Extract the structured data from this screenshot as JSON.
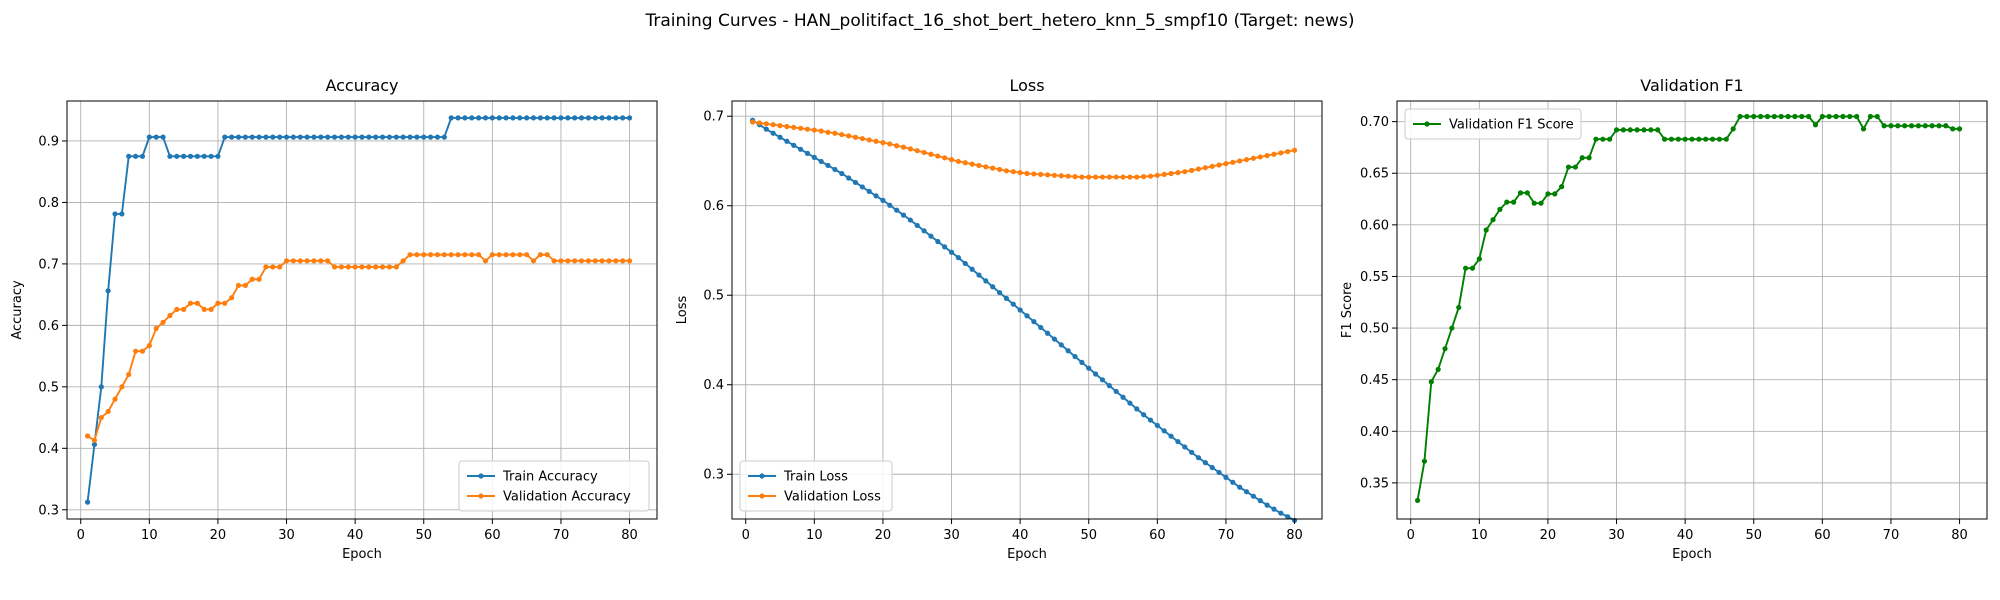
{
  "suptitle": "Training Curves - HAN_politifact_16_shot_bert_hetero_knn_5_smpf10 (Target: news)",
  "chart_data": [
    {
      "type": "line",
      "title": "Accuracy",
      "xlabel": "Epoch",
      "ylabel": "Accuracy",
      "xlim": [
        -2,
        84
      ],
      "ylim": [
        0.285,
        0.965
      ],
      "xticks": [
        0,
        10,
        20,
        30,
        40,
        50,
        60,
        70,
        80
      ],
      "yticks": [
        0.3,
        0.4,
        0.5,
        0.6,
        0.7,
        0.8,
        0.9
      ],
      "ytick_decimals": 1,
      "grid": true,
      "legend": "lower-right",
      "x": [
        1,
        2,
        3,
        4,
        5,
        6,
        7,
        8,
        9,
        10,
        11,
        12,
        13,
        14,
        15,
        16,
        17,
        18,
        19,
        20,
        21,
        22,
        23,
        24,
        25,
        26,
        27,
        28,
        29,
        30,
        31,
        32,
        33,
        34,
        35,
        36,
        37,
        38,
        39,
        40,
        41,
        42,
        43,
        44,
        45,
        46,
        47,
        48,
        49,
        50,
        51,
        52,
        53,
        54,
        55,
        56,
        57,
        58,
        59,
        60,
        61,
        62,
        63,
        64,
        65,
        66,
        67,
        68,
        69,
        70,
        71,
        72,
        73,
        74,
        75,
        76,
        77,
        78,
        79,
        80
      ],
      "series": [
        {
          "name": "Train Accuracy",
          "color": "#1f77b4",
          "values": [
            0.3125,
            0.40625,
            0.5,
            0.65625,
            0.78125,
            0.78125,
            0.875,
            0.875,
            0.875,
            0.90625,
            0.90625,
            0.90625,
            0.875,
            0.875,
            0.875,
            0.875,
            0.875,
            0.875,
            0.875,
            0.875,
            0.90625,
            0.90625,
            0.90625,
            0.90625,
            0.90625,
            0.90625,
            0.90625,
            0.90625,
            0.90625,
            0.90625,
            0.90625,
            0.90625,
            0.90625,
            0.90625,
            0.90625,
            0.90625,
            0.90625,
            0.90625,
            0.90625,
            0.90625,
            0.90625,
            0.90625,
            0.90625,
            0.90625,
            0.90625,
            0.90625,
            0.90625,
            0.90625,
            0.90625,
            0.90625,
            0.90625,
            0.90625,
            0.90625,
            0.9375,
            0.9375,
            0.9375,
            0.9375,
            0.9375,
            0.9375,
            0.9375,
            0.9375,
            0.9375,
            0.9375,
            0.9375,
            0.9375,
            0.9375,
            0.9375,
            0.9375,
            0.9375,
            0.9375,
            0.9375,
            0.9375,
            0.9375,
            0.9375,
            0.9375,
            0.9375,
            0.9375,
            0.9375,
            0.9375,
            0.9375
          ]
        },
        {
          "name": "Validation Accuracy",
          "color": "#ff7f0e",
          "values": [
            0.42,
            0.413,
            0.45,
            0.46,
            0.48,
            0.5,
            0.52,
            0.558,
            0.558,
            0.567,
            0.595,
            0.605,
            0.616,
            0.626,
            0.626,
            0.636,
            0.636,
            0.626,
            0.626,
            0.636,
            0.636,
            0.645,
            0.665,
            0.665,
            0.675,
            0.675,
            0.695,
            0.695,
            0.695,
            0.705,
            0.705,
            0.705,
            0.705,
            0.705,
            0.705,
            0.705,
            0.695,
            0.695,
            0.695,
            0.695,
            0.695,
            0.695,
            0.695,
            0.695,
            0.695,
            0.695,
            0.705,
            0.715,
            0.715,
            0.715,
            0.715,
            0.715,
            0.715,
            0.715,
            0.715,
            0.715,
            0.715,
            0.715,
            0.705,
            0.715,
            0.715,
            0.715,
            0.715,
            0.715,
            0.715,
            0.705,
            0.715,
            0.715,
            0.705,
            0.705,
            0.705,
            0.705,
            0.705,
            0.705,
            0.705,
            0.705,
            0.705,
            0.705,
            0.705,
            0.705
          ]
        }
      ]
    },
    {
      "type": "line",
      "title": "Loss",
      "xlabel": "Epoch",
      "ylabel": "Loss",
      "xlim": [
        -2,
        84
      ],
      "ylim": [
        0.25,
        0.717
      ],
      "xticks": [
        0,
        10,
        20,
        30,
        40,
        50,
        60,
        70,
        80
      ],
      "yticks": [
        0.3,
        0.4,
        0.5,
        0.6,
        0.7
      ],
      "ytick_decimals": 1,
      "grid": true,
      "legend": "lower-left",
      "x": [
        1,
        2,
        3,
        4,
        5,
        6,
        7,
        8,
        9,
        10,
        11,
        12,
        13,
        14,
        15,
        16,
        17,
        18,
        19,
        20,
        21,
        22,
        23,
        24,
        25,
        26,
        27,
        28,
        29,
        30,
        31,
        32,
        33,
        34,
        35,
        36,
        37,
        38,
        39,
        40,
        41,
        42,
        43,
        44,
        45,
        46,
        47,
        48,
        49,
        50,
        51,
        52,
        53,
        54,
        55,
        56,
        57,
        58,
        59,
        60,
        61,
        62,
        63,
        64,
        65,
        66,
        67,
        68,
        69,
        70,
        71,
        72,
        73,
        74,
        75,
        76,
        77,
        78,
        79,
        80
      ],
      "series": [
        {
          "name": "Train Loss",
          "color": "#1f77b4",
          "values": [
            0.6955,
            0.6905,
            0.6855,
            0.681,
            0.6765,
            0.672,
            0.6675,
            0.663,
            0.6585,
            0.654,
            0.6495,
            0.645,
            0.6405,
            0.636,
            0.631,
            0.626,
            0.621,
            0.616,
            0.611,
            0.606,
            0.6005,
            0.595,
            0.5895,
            0.584,
            0.578,
            0.572,
            0.566,
            0.56,
            0.554,
            0.548,
            0.542,
            0.5355,
            0.529,
            0.5225,
            0.516,
            0.5095,
            0.503,
            0.4965,
            0.49,
            0.4835,
            0.477,
            0.4705,
            0.464,
            0.4575,
            0.451,
            0.4445,
            0.438,
            0.4315,
            0.425,
            0.4185,
            0.412,
            0.4055,
            0.399,
            0.3925,
            0.386,
            0.3795,
            0.373,
            0.3665,
            0.3605,
            0.3545,
            0.3485,
            0.3425,
            0.3365,
            0.3305,
            0.3245,
            0.3185,
            0.313,
            0.3075,
            0.302,
            0.2965,
            0.291,
            0.2855,
            0.2805,
            0.2755,
            0.2705,
            0.2655,
            0.261,
            0.2565,
            0.2525,
            0.2485
          ]
        },
        {
          "name": "Validation Loss",
          "color": "#ff7f0e",
          "values": [
            0.6935,
            0.6925,
            0.6915,
            0.6905,
            0.6895,
            0.6885,
            0.6875,
            0.6865,
            0.6855,
            0.6845,
            0.6835,
            0.682,
            0.681,
            0.6795,
            0.678,
            0.6765,
            0.675,
            0.6735,
            0.672,
            0.6705,
            0.669,
            0.667,
            0.6655,
            0.6635,
            0.6615,
            0.6595,
            0.6575,
            0.6555,
            0.6535,
            0.6515,
            0.6495,
            0.648,
            0.6465,
            0.645,
            0.6435,
            0.642,
            0.6405,
            0.639,
            0.638,
            0.637,
            0.636,
            0.6355,
            0.635,
            0.6345,
            0.634,
            0.6335,
            0.633,
            0.6325,
            0.632,
            0.632,
            0.632,
            0.632,
            0.632,
            0.632,
            0.632,
            0.632,
            0.632,
            0.6325,
            0.633,
            0.634,
            0.635,
            0.636,
            0.637,
            0.638,
            0.6395,
            0.641,
            0.6425,
            0.644,
            0.6455,
            0.647,
            0.6485,
            0.65,
            0.6515,
            0.653,
            0.6545,
            0.656,
            0.6575,
            0.659,
            0.6605,
            0.662
          ]
        }
      ]
    },
    {
      "type": "line",
      "title": "Validation F1",
      "xlabel": "Epoch",
      "ylabel": "F1 Score",
      "xlim": [
        -2,
        84
      ],
      "ylim": [
        0.315,
        0.72
      ],
      "xticks": [
        0,
        10,
        20,
        30,
        40,
        50,
        60,
        70,
        80
      ],
      "yticks": [
        0.35,
        0.4,
        0.45,
        0.5,
        0.55,
        0.6,
        0.65,
        0.7
      ],
      "ytick_decimals": 2,
      "grid": true,
      "legend": "upper-left",
      "x": [
        1,
        2,
        3,
        4,
        5,
        6,
        7,
        8,
        9,
        10,
        11,
        12,
        13,
        14,
        15,
        16,
        17,
        18,
        19,
        20,
        21,
        22,
        23,
        24,
        25,
        26,
        27,
        28,
        29,
        30,
        31,
        32,
        33,
        34,
        35,
        36,
        37,
        38,
        39,
        40,
        41,
        42,
        43,
        44,
        45,
        46,
        47,
        48,
        49,
        50,
        51,
        52,
        53,
        54,
        55,
        56,
        57,
        58,
        59,
        60,
        61,
        62,
        63,
        64,
        65,
        66,
        67,
        68,
        69,
        70,
        71,
        72,
        73,
        74,
        75,
        76,
        77,
        78,
        79,
        80
      ],
      "series": [
        {
          "name": "Validation F1 Score",
          "color": "#008000",
          "values": [
            0.333,
            0.371,
            0.448,
            0.46,
            0.48,
            0.5,
            0.52,
            0.558,
            0.558,
            0.567,
            0.595,
            0.605,
            0.615,
            0.622,
            0.622,
            0.631,
            0.631,
            0.621,
            0.621,
            0.63,
            0.63,
            0.637,
            0.656,
            0.656,
            0.665,
            0.665,
            0.683,
            0.683,
            0.683,
            0.692,
            0.692,
            0.692,
            0.692,
            0.692,
            0.692,
            0.692,
            0.683,
            0.683,
            0.683,
            0.683,
            0.683,
            0.683,
            0.683,
            0.683,
            0.683,
            0.683,
            0.693,
            0.705,
            0.705,
            0.705,
            0.705,
            0.705,
            0.705,
            0.705,
            0.705,
            0.705,
            0.705,
            0.705,
            0.697,
            0.705,
            0.705,
            0.705,
            0.705,
            0.705,
            0.705,
            0.693,
            0.705,
            0.705,
            0.696,
            0.696,
            0.696,
            0.696,
            0.696,
            0.696,
            0.696,
            0.696,
            0.696,
            0.696,
            0.693,
            0.693
          ]
        }
      ]
    }
  ]
}
